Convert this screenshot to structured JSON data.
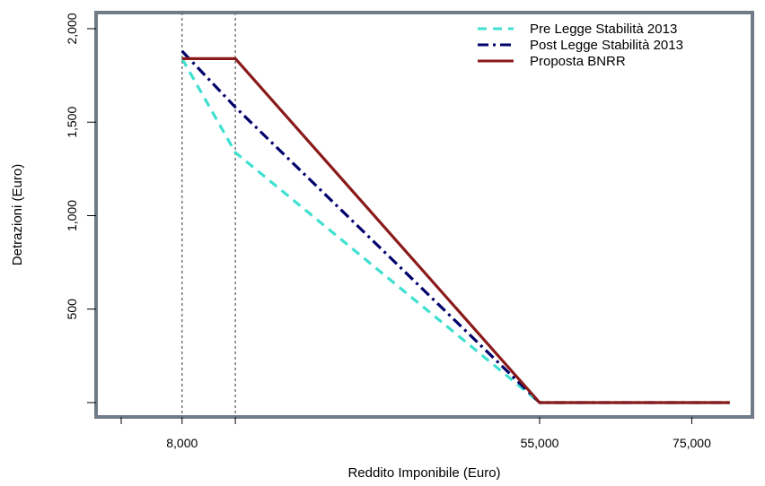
{
  "chart_data": {
    "type": "line",
    "title": "",
    "xlabel": "Reddito Imponibile (Euro)",
    "ylabel": "Detrazioni (Euro)",
    "xlim": [
      0,
      82000
    ],
    "ylim": [
      0,
      2000
    ],
    "x_ticks": [
      0,
      8000,
      15000,
      55000,
      75000
    ],
    "x_tick_labels": [
      "",
      "8,000",
      "",
      "55,000",
      "75,000"
    ],
    "y_ticks": [
      0,
      500,
      1000,
      1500,
      2000
    ],
    "y_tick_labels": [
      "",
      "500",
      "1,000",
      "1,500",
      "2,000"
    ],
    "vlines": [
      8000,
      15000
    ],
    "legend_position": "top-right",
    "series": [
      {
        "name": "Pre Legge Stabilità 2013",
        "color": "#40E0D0",
        "dash": "dashed",
        "x": [
          8000,
          15000,
          55000,
          80000
        ],
        "y": [
          1840,
          1338,
          0,
          0
        ]
      },
      {
        "name": "Post Legge Stabilità 2013",
        "color": "#00006B",
        "dash": "dotdash",
        "x": [
          8000,
          15000,
          55000,
          80000
        ],
        "y": [
          1880,
          1580,
          0,
          0
        ]
      },
      {
        "name": "Proposta BNRR",
        "color": "#8B1A1A",
        "dash": "solid",
        "x": [
          8000,
          15000,
          55000,
          80000
        ],
        "y": [
          1840,
          1840,
          0,
          0
        ]
      }
    ]
  }
}
